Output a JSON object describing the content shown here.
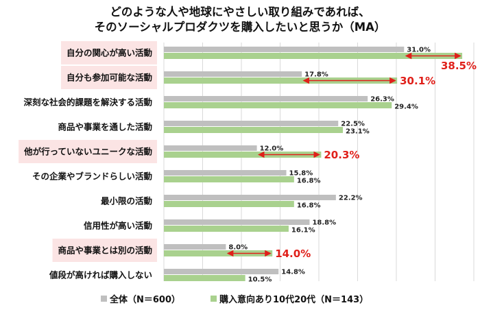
{
  "chart_data": {
    "type": "bar",
    "orientation": "horizontal",
    "title_lines": [
      "どのような人や地球にやさしい取り組みであれば、",
      "そのソーシャルプロダクツを購入したいと思うか（MA）"
    ],
    "categories": [
      "自分の関心が高い活動",
      "自分も参加可能な活動",
      "深刻な社会的課題を解決する活動",
      "商品や事業を通した活動",
      "他が行っていないユニークな活動",
      "その企業やブランドらしい活動",
      "最小限の活動",
      "信用性が高い活動",
      "商品や事業とは別の活動",
      "値段が高ければ購入しない"
    ],
    "highlighted": [
      true,
      true,
      false,
      false,
      true,
      false,
      false,
      false,
      true,
      false
    ],
    "series": [
      {
        "name": "全体（N＝600）",
        "color": "#bfbfbf",
        "values": [
          31.0,
          17.8,
          26.3,
          22.5,
          12.0,
          15.8,
          22.2,
          18.8,
          8.0,
          14.8
        ]
      },
      {
        "name": "購入意向あり10代20代（N＝143）",
        "color": "#a9d18e",
        "values": [
          38.5,
          30.1,
          29.4,
          23.1,
          20.3,
          16.8,
          16.8,
          16.1,
          14.0,
          10.5
        ]
      }
    ],
    "value_format": "%",
    "xlim": [
      0,
      40
    ],
    "grid_step": 5,
    "grid": true,
    "highlight_color": "#e0201a",
    "highlight_bg": "#fbe4e4",
    "legend": "bottom"
  }
}
